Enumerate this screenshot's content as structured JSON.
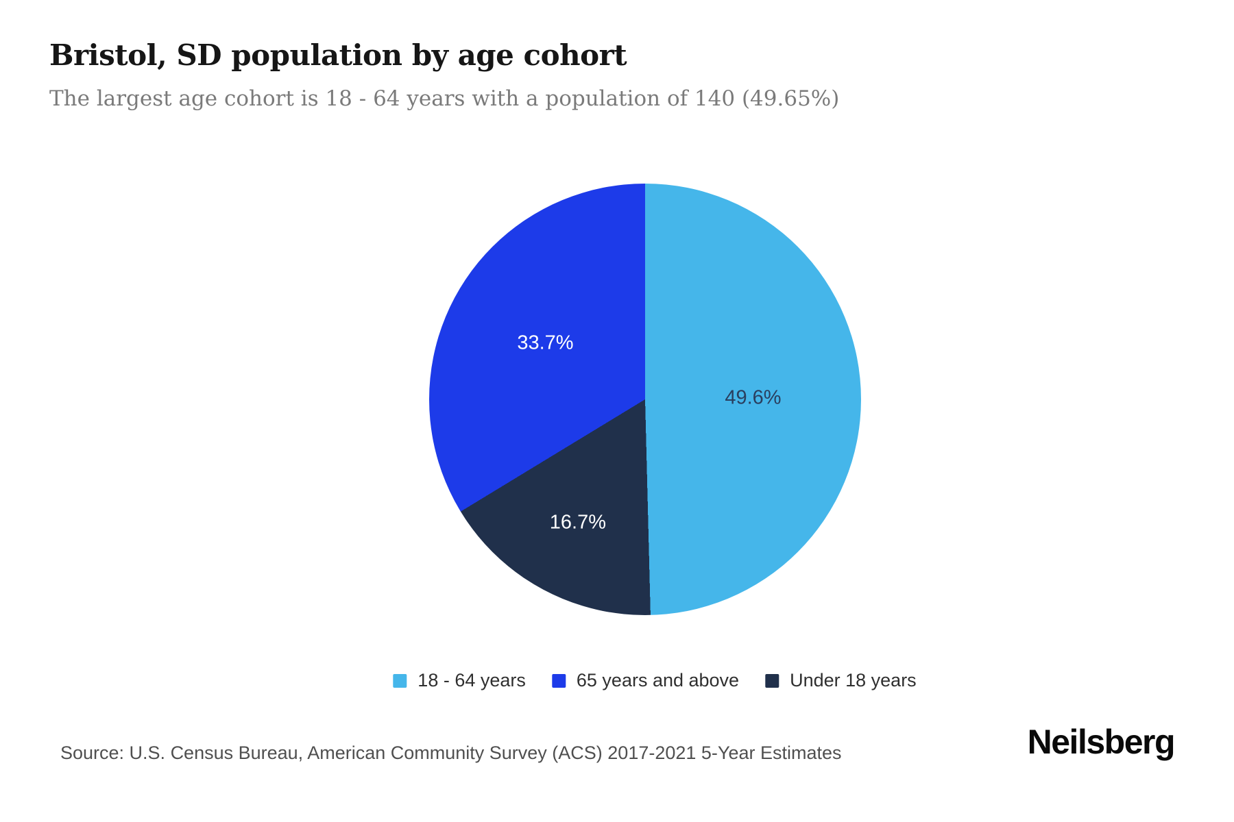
{
  "header": {
    "title": "Bristol, SD population by age cohort",
    "subtitle": "The largest age cohort is 18 - 64 years with a population of 140 (49.65%)"
  },
  "footer": {
    "source": "Source: U.S. Census Bureau, American Community Survey (ACS) 2017-2021 5-Year Estimates",
    "brand": "Neilsberg"
  },
  "chart_data": {
    "type": "pie",
    "title": "Bristol, SD population by age cohort",
    "subtitle": "The largest age cohort is 18 - 64 years with a population of 140 (49.65%)",
    "start_angle_deg": 0,
    "direction": "clockwise",
    "legend_position": "bottom-center",
    "slices": [
      {
        "label": "18 - 64 years",
        "pct": 49.6,
        "pct_label": "49.6%",
        "color": "#45b6ea",
        "label_color": "#2a3f5f",
        "label_r_frac": 0.5
      },
      {
        "label": "Under 18 years",
        "pct": 16.7,
        "pct_label": "16.7%",
        "color": "#20304b",
        "label_color": "#ffffff",
        "label_r_frac": 0.65
      },
      {
        "label": "65 years and above",
        "pct": 33.7,
        "pct_label": "33.7%",
        "color": "#1d3be9",
        "label_color": "#ffffff",
        "label_r_frac": 0.53
      }
    ]
  }
}
